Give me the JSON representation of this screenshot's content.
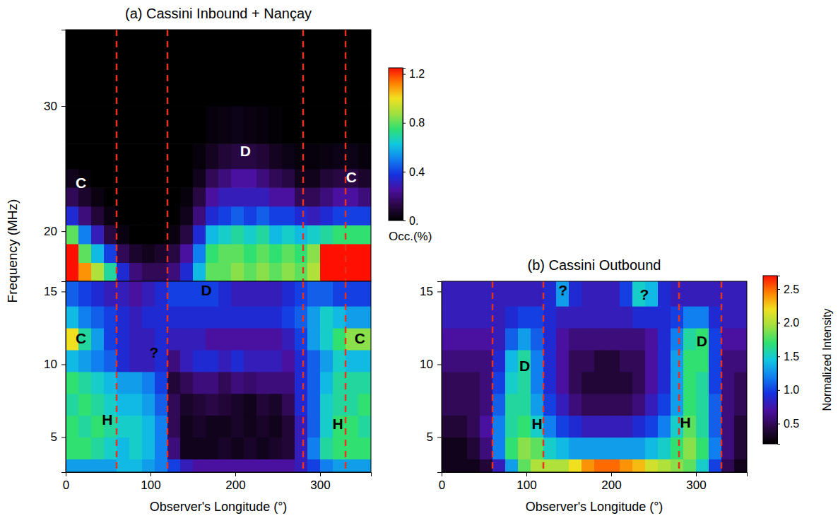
{
  "chart_data": [
    {
      "type": "heatmap",
      "title": "(a) Cassini Inbound + Nançay",
      "ylabel": "Frequency (MHz)",
      "xlim": [
        0,
        360
      ],
      "ylim": [
        16,
        36.1
      ],
      "yticks": [
        20,
        30
      ],
      "tick_labels": "y",
      "x_edges": [
        0,
        15,
        30,
        45,
        60,
        75,
        90,
        105,
        120,
        135,
        150,
        165,
        180,
        195,
        210,
        225,
        240,
        255,
        270,
        285,
        300,
        315,
        330,
        345,
        360
      ],
      "y_edges": [
        16,
        17.5,
        19,
        20.5,
        22,
        23.5,
        25,
        27,
        30,
        36.1
      ],
      "cells": [
        [
          1.3,
          1.1,
          0.9,
          0.7,
          0.35,
          0.2,
          0.15,
          0.15,
          0.2,
          0.35,
          0.6,
          0.8,
          0.8,
          0.85,
          0.8,
          0.85,
          0.8,
          0.85,
          0.8,
          0.9,
          1.3,
          1.3,
          1.3,
          1.3
        ],
        [
          1.3,
          0.8,
          0.6,
          0.4,
          0.15,
          0.08,
          0.05,
          0.08,
          0.12,
          0.25,
          0.5,
          0.75,
          0.8,
          0.8,
          0.75,
          0.8,
          0.75,
          0.8,
          0.75,
          0.85,
          1.25,
          1.3,
          1.3,
          1.3
        ],
        [
          0.8,
          0.5,
          0.3,
          0.12,
          0.03,
          0,
          0,
          0,
          0.03,
          0.12,
          0.35,
          0.6,
          0.65,
          0.7,
          0.65,
          0.7,
          0.6,
          0.65,
          0.6,
          0.65,
          0.7,
          0.75,
          0.75,
          0.75
        ],
        [
          0.35,
          0.2,
          0.1,
          0.03,
          0,
          0,
          0,
          0,
          0,
          0.05,
          0.2,
          0.35,
          0.4,
          0.45,
          0.4,
          0.45,
          0.4,
          0.4,
          0.35,
          0.3,
          0.35,
          0.4,
          0.4,
          0.4
        ],
        [
          0.15,
          0.08,
          0.03,
          0,
          0,
          0,
          0,
          0,
          0,
          0.02,
          0.12,
          0.25,
          0.3,
          0.3,
          0.3,
          0.3,
          0.25,
          0.25,
          0.15,
          0.15,
          0.2,
          0.25,
          0.25,
          0.2
        ],
        [
          0.05,
          0.02,
          0,
          0,
          0,
          0,
          0,
          0,
          0,
          0,
          0.05,
          0.15,
          0.2,
          0.25,
          0.25,
          0.2,
          0.15,
          0.12,
          0.05,
          0.05,
          0.1,
          0.12,
          0.12,
          0.08
        ],
        [
          0,
          0,
          0,
          0,
          0,
          0,
          0,
          0,
          0,
          0,
          0.02,
          0.06,
          0.1,
          0.12,
          0.12,
          0.1,
          0.06,
          0.04,
          0.02,
          0.02,
          0.03,
          0.04,
          0.04,
          0.02
        ],
        [
          0,
          0,
          0,
          0,
          0,
          0,
          0,
          0,
          0,
          0,
          0,
          0.02,
          0.03,
          0.04,
          0.03,
          0.02,
          0.01,
          0,
          0,
          0,
          0,
          0,
          0,
          0
        ],
        [
          0,
          0,
          0,
          0,
          0,
          0,
          0,
          0,
          0,
          0,
          0,
          0,
          0,
          0,
          0,
          0,
          0,
          0,
          0,
          0,
          0,
          0,
          0,
          0
        ]
      ],
      "colorbar": {
        "range": [
          0,
          1.25
        ],
        "ticks": [
          {
            "value": 0,
            "label": "0."
          },
          0.4,
          0.8,
          1.2
        ],
        "title": "Occ.(%)"
      },
      "vlines": [
        60,
        120,
        280,
        330
      ],
      "annotations": [
        {
          "text": "C",
          "x": 18,
          "y": 23.9,
          "color": "#ffffff"
        },
        {
          "text": "D",
          "x": 212,
          "y": 26.4,
          "color": "#ffffff"
        },
        {
          "text": "C",
          "x": 337,
          "y": 24.3,
          "color": "#ffffff"
        }
      ]
    },
    {
      "type": "heatmap",
      "xlabel": "Observer's Longitude (°)",
      "xlim": [
        0,
        360
      ],
      "ylim": [
        2.6,
        15.7
      ],
      "xticks": [
        0,
        100,
        200,
        300
      ],
      "yticks": [
        5,
        10,
        15
      ],
      "x_edges": [
        0,
        15,
        30,
        45,
        60,
        75,
        90,
        105,
        120,
        135,
        150,
        165,
        180,
        195,
        210,
        225,
        240,
        255,
        270,
        285,
        300,
        315,
        330,
        345,
        360
      ],
      "y_edges": [
        2.6,
        3.5,
        5,
        6.5,
        8,
        9.5,
        11,
        12.5,
        14,
        15.7
      ],
      "cells": [
        [
          1.3,
          1.3,
          1.3,
          1.3,
          1.4,
          1.4,
          1.3,
          1.2,
          1.0,
          0.8,
          0.7,
          0.7,
          0.7,
          0.7,
          0.7,
          0.7,
          0.7,
          0.7,
          0.8,
          1.0,
          1.2,
          1.3,
          1.3,
          1.3
        ],
        [
          1.7,
          1.7,
          1.6,
          1.5,
          1.4,
          1.5,
          1.4,
          1.2,
          0.6,
          0.3,
          0.3,
          0.3,
          0.35,
          0.3,
          0.35,
          0.3,
          0.35,
          0.4,
          0.8,
          1.2,
          1.6,
          1.7,
          1.7,
          1.7
        ],
        [
          1.7,
          1.6,
          1.7,
          1.6,
          1.5,
          1.5,
          1.4,
          1.2,
          0.5,
          0.3,
          0.35,
          0.3,
          0.3,
          0.35,
          0.3,
          0.35,
          0.3,
          0.4,
          0.8,
          1.1,
          1.5,
          1.7,
          1.7,
          1.6
        ],
        [
          1.6,
          1.7,
          1.6,
          1.5,
          1.4,
          1.4,
          1.3,
          1.1,
          0.5,
          0.35,
          0.4,
          0.45,
          0.4,
          0.35,
          0.3,
          0.4,
          0.35,
          0.5,
          0.9,
          1.1,
          1.5,
          1.6,
          1.6,
          1.7
        ],
        [
          1.7,
          1.6,
          1.5,
          1.4,
          1.3,
          1.3,
          1.2,
          1.0,
          0.4,
          0.5,
          0.6,
          0.6,
          0.5,
          0.6,
          0.55,
          0.6,
          0.6,
          0.6,
          0.9,
          1.1,
          1.4,
          1.6,
          1.6,
          1.6
        ],
        [
          1.4,
          1.3,
          1.2,
          1.1,
          0.9,
          0.8,
          0.8,
          0.9,
          0.6,
          0.8,
          0.9,
          0.9,
          0.8,
          0.9,
          0.8,
          0.8,
          0.8,
          0.7,
          0.9,
          1.1,
          1.3,
          1.5,
          1.4,
          1.4
        ],
        [
          2.2,
          1.6,
          1.3,
          1.0,
          0.9,
          0.8,
          0.8,
          0.9,
          0.8,
          0.8,
          0.8,
          0.7,
          0.7,
          0.7,
          0.7,
          0.7,
          0.7,
          0.8,
          1.0,
          1.3,
          1.5,
          1.7,
          1.9,
          1.9
        ],
        [
          1.4,
          1.2,
          1.1,
          1.0,
          0.9,
          0.8,
          0.9,
          0.9,
          0.9,
          0.9,
          0.9,
          0.9,
          0.9,
          0.9,
          0.9,
          0.9,
          0.9,
          1.0,
          1.1,
          1.3,
          1.5,
          1.4,
          1.3,
          1.3
        ],
        [
          1.1,
          1.0,
          0.9,
          0.8,
          0.8,
          0.7,
          0.8,
          0.9,
          1.0,
          1.0,
          1.0,
          1.0,
          0.9,
          0.8,
          0.8,
          0.8,
          0.8,
          0.9,
          1.0,
          1.1,
          1.1,
          1.0,
          1.0,
          1.0
        ]
      ],
      "color_range": [
        0.2,
        2.7
      ],
      "vlines": [
        60,
        120,
        280,
        330
      ],
      "annotations": [
        {
          "text": "D",
          "x": 166,
          "y": 15.1,
          "color": "#000000"
        },
        {
          "text": "C",
          "x": 18,
          "y": 11.8,
          "color": "#000000"
        },
        {
          "text": "?",
          "x": 104,
          "y": 10.8,
          "color": "#000000"
        },
        {
          "text": "C",
          "x": 347,
          "y": 11.8,
          "color": "#000000"
        },
        {
          "text": "H",
          "x": 49,
          "y": 6.2,
          "color": "#000000"
        },
        {
          "text": "H",
          "x": 321,
          "y": 5.9,
          "color": "#000000"
        }
      ]
    },
    {
      "type": "heatmap",
      "title": "(b) Cassini Outbound",
      "xlabel": "Observer's Longitude (°)",
      "xlim": [
        0,
        360
      ],
      "ylim": [
        2.6,
        15.7
      ],
      "xticks": [
        0,
        100,
        200,
        300
      ],
      "yticks": [
        5,
        10,
        15
      ],
      "x_edges": [
        0,
        15,
        30,
        45,
        60,
        75,
        90,
        105,
        120,
        135,
        150,
        165,
        180,
        195,
        210,
        225,
        240,
        255,
        270,
        285,
        300,
        315,
        330,
        345,
        360
      ],
      "y_edges": [
        2.6,
        3.5,
        5,
        6.5,
        8,
        9.5,
        11,
        12.5,
        14,
        15.7
      ],
      "cells": [
        [
          0.3,
          0.3,
          0.3,
          0.4,
          0.8,
          1.3,
          1.8,
          2.0,
          2.0,
          2.0,
          2.2,
          2.4,
          2.5,
          2.5,
          2.4,
          2.3,
          2.1,
          2.0,
          1.9,
          1.8,
          1.5,
          1.0,
          0.5,
          0.3
        ],
        [
          0.3,
          0.3,
          0.4,
          0.6,
          1.2,
          1.7,
          1.9,
          1.8,
          1.5,
          1.4,
          1.3,
          1.3,
          1.3,
          1.3,
          1.3,
          1.3,
          1.4,
          1.5,
          1.7,
          1.9,
          1.7,
          1.2,
          0.6,
          0.4
        ],
        [
          0.4,
          0.4,
          0.5,
          0.7,
          1.2,
          1.6,
          1.7,
          1.5,
          1.2,
          1.0,
          0.9,
          0.8,
          0.8,
          0.8,
          0.8,
          0.9,
          1.0,
          1.2,
          1.5,
          1.8,
          1.6,
          1.1,
          0.6,
          0.4
        ],
        [
          0.5,
          0.5,
          0.5,
          0.6,
          1.1,
          1.6,
          1.6,
          1.3,
          1.0,
          0.8,
          0.6,
          0.5,
          0.5,
          0.5,
          0.5,
          0.6,
          0.8,
          1.0,
          1.3,
          1.7,
          1.6,
          1.1,
          0.6,
          0.5
        ],
        [
          0.5,
          0.5,
          0.5,
          0.6,
          1.0,
          1.5,
          1.6,
          1.2,
          0.9,
          0.7,
          0.5,
          0.4,
          0.4,
          0.4,
          0.4,
          0.5,
          0.7,
          0.9,
          1.3,
          1.7,
          1.6,
          1.0,
          0.6,
          0.5
        ],
        [
          0.6,
          0.6,
          0.6,
          0.6,
          0.9,
          1.4,
          1.6,
          1.2,
          0.9,
          0.7,
          0.5,
          0.5,
          0.4,
          0.4,
          0.5,
          0.5,
          0.7,
          0.9,
          1.3,
          1.7,
          1.7,
          1.0,
          0.6,
          0.6
        ],
        [
          0.7,
          0.7,
          0.7,
          0.7,
          0.8,
          1.1,
          1.3,
          1.1,
          0.9,
          0.7,
          0.6,
          0.6,
          0.6,
          0.6,
          0.6,
          0.6,
          0.7,
          0.9,
          1.2,
          1.6,
          1.7,
          1.0,
          0.7,
          0.7
        ],
        [
          0.8,
          0.8,
          0.8,
          0.8,
          0.8,
          0.9,
          1.0,
          1.0,
          0.9,
          0.8,
          0.8,
          0.8,
          0.8,
          0.8,
          0.8,
          0.9,
          0.9,
          0.9,
          1.0,
          1.2,
          1.2,
          0.9,
          0.8,
          0.8
        ],
        [
          0.8,
          0.8,
          0.8,
          0.8,
          0.8,
          0.8,
          0.8,
          0.8,
          0.9,
          1.3,
          0.9,
          0.8,
          0.8,
          0.8,
          1.0,
          1.5,
          1.4,
          0.9,
          0.8,
          0.8,
          0.8,
          0.8,
          0.8,
          0.8
        ]
      ],
      "colorbar": {
        "range": [
          0.2,
          2.7
        ],
        "ticks": [
          0.5,
          {
            "value": 1,
            "label": "1.0"
          },
          1.5,
          {
            "value": 2,
            "label": "2.0"
          },
          2.5
        ],
        "title": "Normalized Intensity"
      },
      "vlines": [
        60,
        120,
        280,
        330
      ],
      "annotations": [
        {
          "text": "?",
          "x": 143,
          "y": 15.1,
          "color": "#000000"
        },
        {
          "text": "?",
          "x": 239,
          "y": 14.8,
          "color": "#000000"
        },
        {
          "text": "D",
          "x": 98,
          "y": 9.9,
          "color": "#000000"
        },
        {
          "text": "D",
          "x": 307,
          "y": 11.6,
          "color": "#000000"
        },
        {
          "text": "H",
          "x": 112.5,
          "y": 5.9,
          "color": "#000000"
        },
        {
          "text": "H",
          "x": 287.5,
          "y": 6.0,
          "color": "#000000"
        }
      ]
    }
  ]
}
